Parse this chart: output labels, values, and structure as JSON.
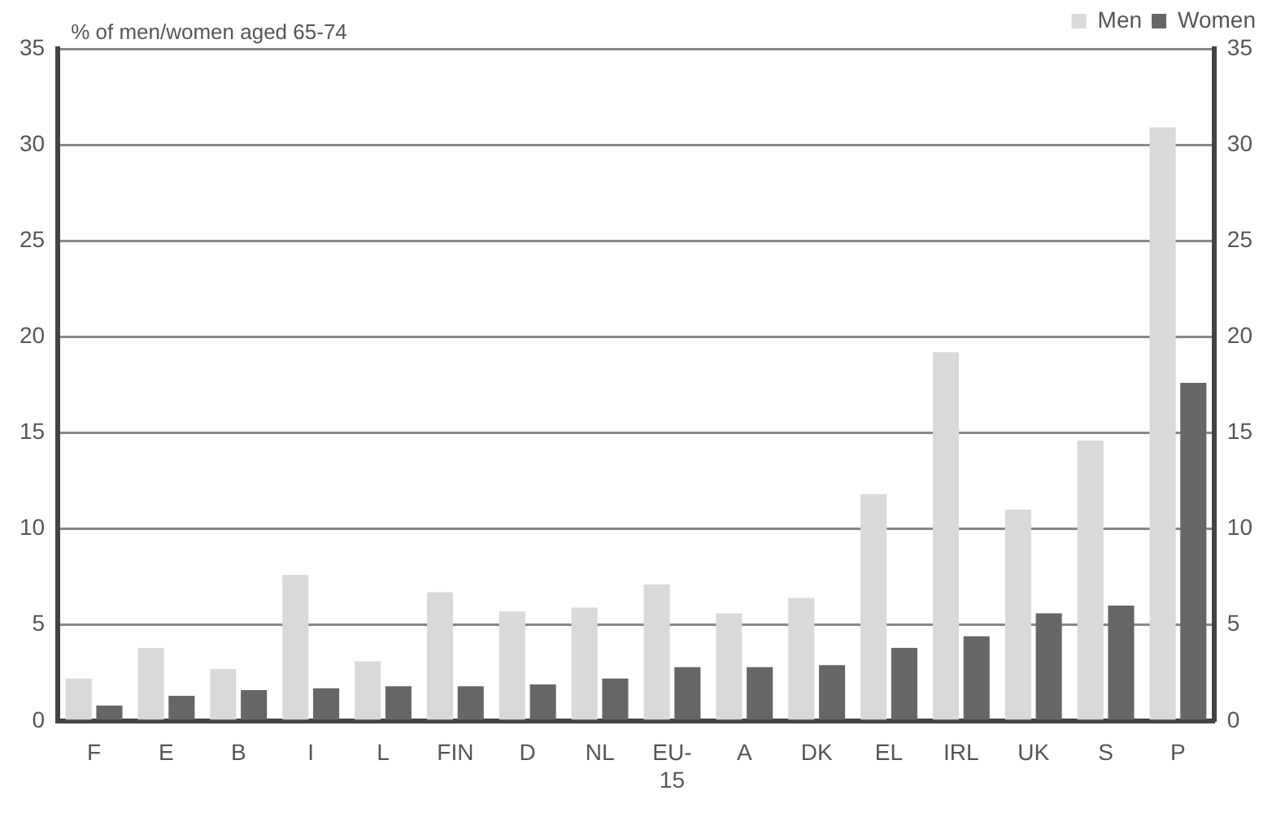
{
  "chart_data": {
    "type": "bar",
    "ylabel": "% of men/women aged 65-74",
    "categories": [
      "F",
      "E",
      "B",
      "I",
      "L",
      "FIN",
      "D",
      "NL",
      "EU-15",
      "A",
      "DK",
      "EL",
      "IRL",
      "UK",
      "S",
      "P"
    ],
    "series": [
      {
        "name": "Men",
        "color": "#d9d9d9",
        "values": [
          2.2,
          3.8,
          2.7,
          7.6,
          3.1,
          6.7,
          5.7,
          5.9,
          7.1,
          5.6,
          6.4,
          11.8,
          19.2,
          11.0,
          14.6,
          30.9
        ]
      },
      {
        "name": "Women",
        "color": "#666666",
        "values": [
          0.8,
          1.3,
          1.6,
          1.7,
          1.8,
          1.8,
          1.9,
          2.2,
          2.8,
          2.8,
          2.9,
          3.8,
          4.4,
          5.6,
          6.0,
          17.6
        ]
      }
    ],
    "ylim": [
      0,
      35
    ],
    "yticks": [
      0,
      5,
      10,
      15,
      20,
      25,
      30,
      35
    ],
    "y2lim": [
      0,
      35
    ],
    "y2ticks": [
      0,
      5,
      10,
      15,
      20,
      25,
      30,
      35
    ],
    "grid": "y",
    "legend": "top right"
  }
}
